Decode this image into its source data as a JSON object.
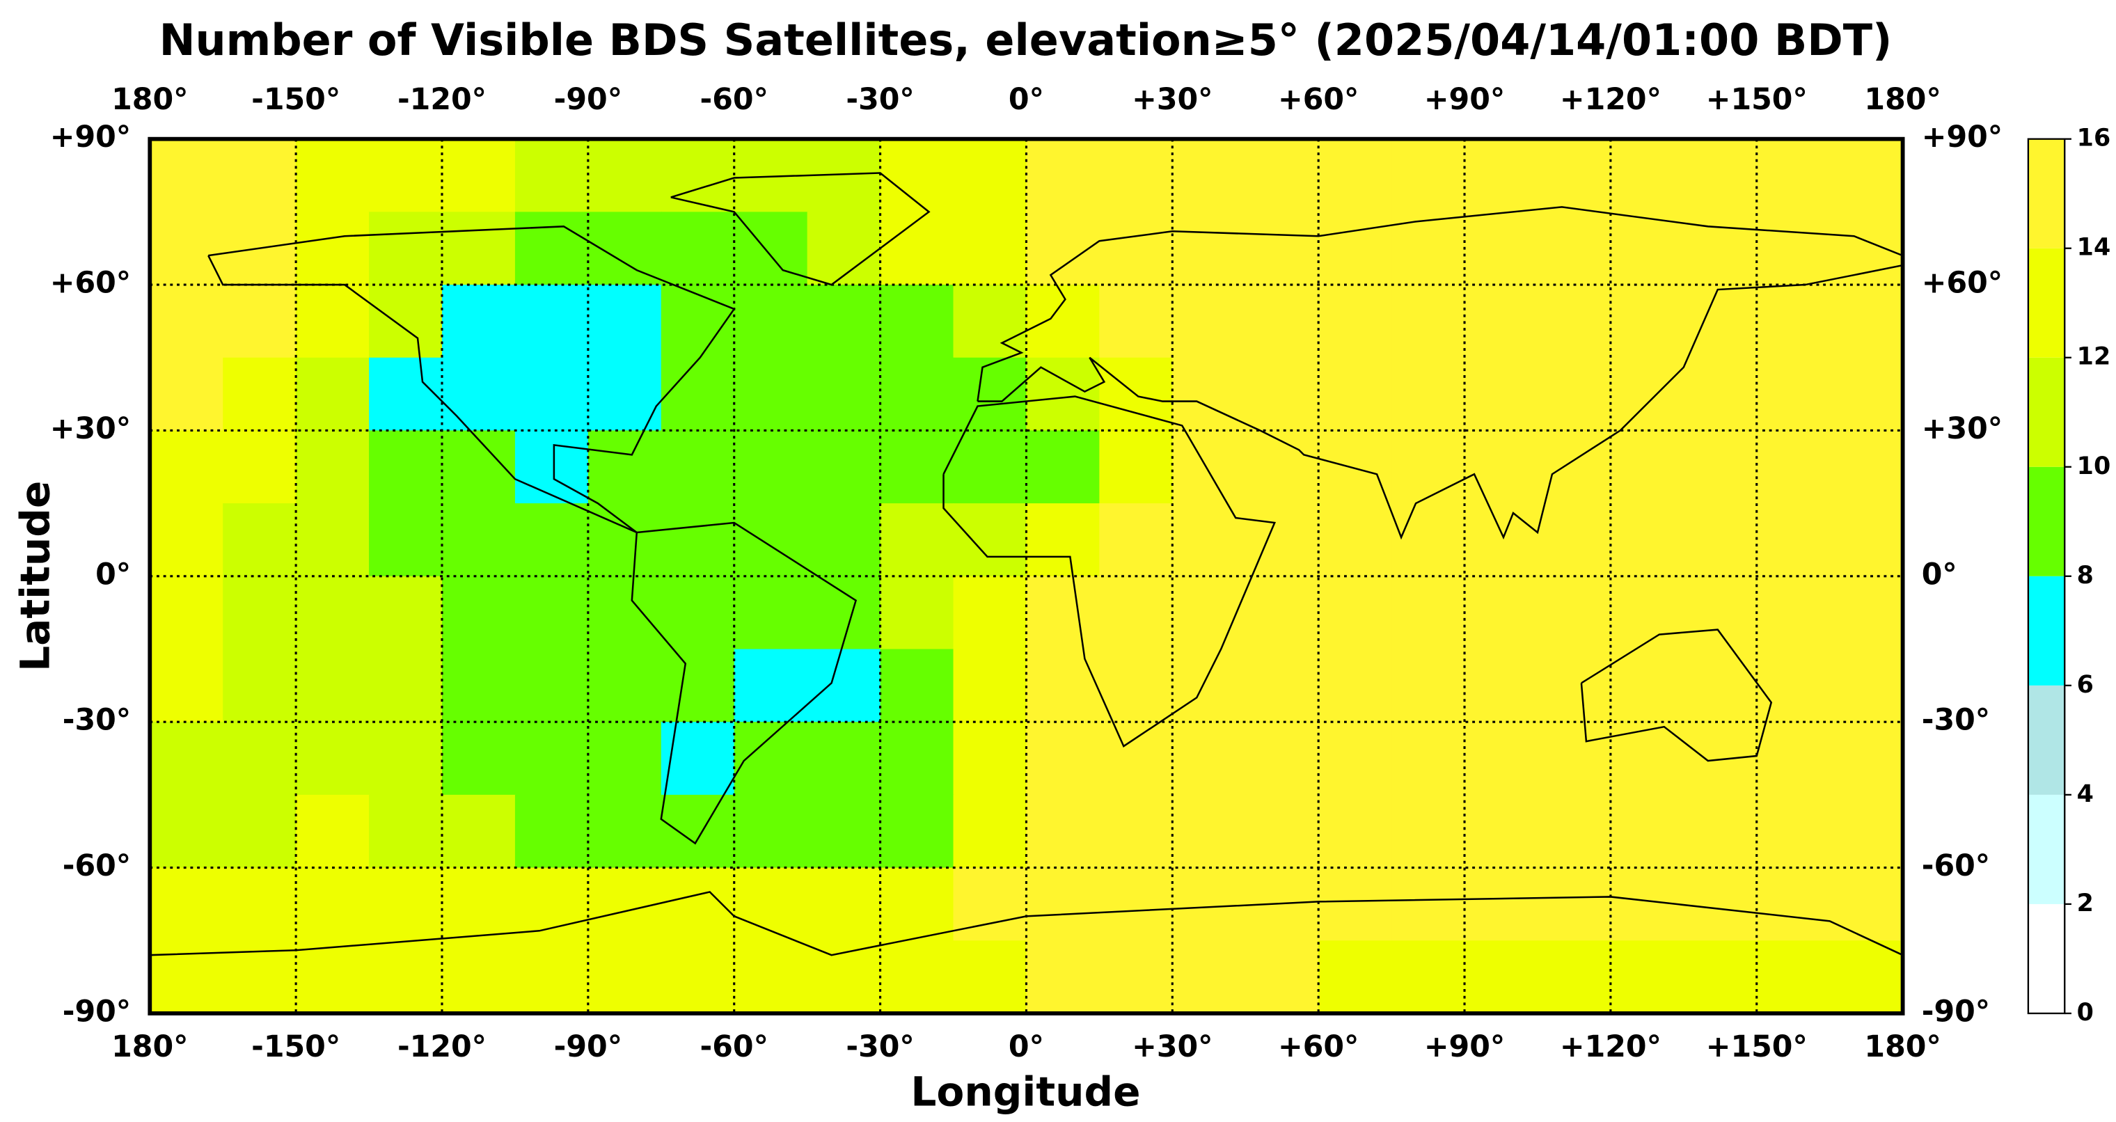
{
  "chart_data": {
    "type": "heatmap",
    "title": "Number of Visible BDS Satellites, elevation≥5° (2025/04/14/01:00 BDT)",
    "xlabel": "Longitude",
    "ylabel": "Latitude",
    "xlim": [
      -180,
      180
    ],
    "ylim": [
      -90,
      90
    ],
    "xticks": [
      {
        "value": -180,
        "label": "180°"
      },
      {
        "value": -150,
        "label": "-150°"
      },
      {
        "value": -120,
        "label": "-120°"
      },
      {
        "value": -90,
        "label": "-90°"
      },
      {
        "value": -60,
        "label": "-60°"
      },
      {
        "value": -30,
        "label": "-30°"
      },
      {
        "value": 0,
        "label": "0°"
      },
      {
        "value": 30,
        "label": "+30°"
      },
      {
        "value": 60,
        "label": "+60°"
      },
      {
        "value": 90,
        "label": "+90°"
      },
      {
        "value": 120,
        "label": "+120°"
      },
      {
        "value": 150,
        "label": "+150°"
      },
      {
        "value": 180,
        "label": "180°"
      }
    ],
    "yticks": [
      {
        "value": 90,
        "label": "+90°"
      },
      {
        "value": 60,
        "label": "+60°"
      },
      {
        "value": 30,
        "label": "+30°"
      },
      {
        "value": 0,
        "label": "0°"
      },
      {
        "value": -30,
        "label": "-30°"
      },
      {
        "value": -60,
        "label": "-60°"
      },
      {
        "value": -90,
        "label": "-90°"
      }
    ],
    "grid": true,
    "x": [
      -172.5,
      -157.5,
      -142.5,
      -127.5,
      -112.5,
      -97.5,
      -82.5,
      -67.5,
      -52.5,
      -37.5,
      -22.5,
      -7.5,
      7.5,
      22.5,
      37.5,
      52.5,
      67.5,
      82.5,
      97.5,
      112.5,
      127.5,
      142.5,
      157.5,
      172.5
    ],
    "y": [
      82.5,
      67.5,
      52.5,
      37.5,
      22.5,
      7.5,
      -7.5,
      -22.5,
      -37.5,
      -52.5,
      -67.5,
      -82.5
    ],
    "z": [
      [
        15,
        15,
        13,
        13,
        13,
        11,
        11,
        11,
        11,
        11,
        13,
        13,
        15,
        15,
        15,
        15,
        15,
        15,
        15,
        15,
        15,
        15,
        15,
        15
      ],
      [
        15,
        15,
        13,
        11,
        11,
        9,
        9,
        9,
        9,
        11,
        13,
        13,
        15,
        15,
        15,
        15,
        15,
        15,
        15,
        15,
        15,
        15,
        15,
        15
      ],
      [
        15,
        15,
        13,
        11,
        7,
        7,
        7,
        9,
        9,
        9,
        9,
        11,
        13,
        15,
        15,
        15,
        15,
        15,
        15,
        15,
        15,
        15,
        15,
        15
      ],
      [
        15,
        13,
        11,
        7,
        7,
        7,
        7,
        9,
        9,
        9,
        9,
        9,
        11,
        13,
        15,
        15,
        15,
        15,
        15,
        15,
        15,
        15,
        15,
        15
      ],
      [
        13,
        13,
        11,
        9,
        9,
        7,
        9,
        9,
        9,
        9,
        9,
        9,
        9,
        13,
        15,
        15,
        15,
        15,
        15,
        15,
        15,
        15,
        15,
        15
      ],
      [
        13,
        11,
        11,
        9,
        9,
        9,
        9,
        9,
        9,
        9,
        11,
        11,
        13,
        15,
        15,
        15,
        15,
        15,
        15,
        15,
        15,
        15,
        15,
        15
      ],
      [
        13,
        11,
        11,
        11,
        9,
        9,
        9,
        9,
        9,
        9,
        11,
        13,
        15,
        15,
        15,
        15,
        15,
        15,
        15,
        15,
        15,
        15,
        15,
        15
      ],
      [
        13,
        11,
        11,
        11,
        9,
        9,
        9,
        9,
        7,
        7,
        9,
        13,
        15,
        15,
        15,
        15,
        15,
        15,
        15,
        15,
        15,
        15,
        15,
        15
      ],
      [
        11,
        11,
        11,
        11,
        9,
        9,
        9,
        7,
        9,
        9,
        9,
        13,
        15,
        15,
        15,
        15,
        15,
        15,
        15,
        15,
        15,
        15,
        15,
        15
      ],
      [
        11,
        11,
        13,
        11,
        11,
        9,
        9,
        9,
        9,
        9,
        9,
        13,
        15,
        15,
        15,
        15,
        15,
        15,
        15,
        15,
        15,
        15,
        15,
        15
      ],
      [
        13,
        13,
        13,
        13,
        13,
        13,
        13,
        13,
        13,
        13,
        13,
        15,
        15,
        15,
        15,
        15,
        15,
        15,
        15,
        15,
        15,
        15,
        15,
        15
      ],
      [
        13,
        13,
        13,
        13,
        13,
        13,
        13,
        13,
        13,
        13,
        13,
        13,
        15,
        15,
        15,
        15,
        13,
        13,
        13,
        13,
        13,
        13,
        13,
        13
      ]
    ],
    "colorbar_ticks": [
      0,
      2,
      4,
      6,
      8,
      10,
      12,
      14,
      16
    ],
    "colorbar_colors": [
      "#ffffff",
      "#ccffff",
      "#b0e6e6",
      "#00ffff",
      "#66ff00",
      "#ccff00",
      "#eeff00",
      "#fff52e"
    ]
  }
}
